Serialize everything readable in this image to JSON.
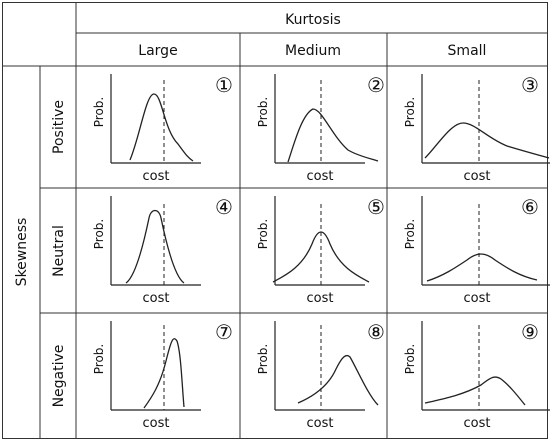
{
  "header": {
    "column_group_label": "Kurtosis",
    "columns": [
      "Large",
      "Medium",
      "Small"
    ],
    "row_group_label": "Skewness",
    "rows": [
      "Positive",
      "Neutral",
      "Negative"
    ]
  },
  "cells": [
    {
      "number": "①",
      "x_label": "cost",
      "y_label": "Prob.",
      "skewness": "positive",
      "kurtosis": "large"
    },
    {
      "number": "②",
      "x_label": "cost",
      "y_label": "Prob.",
      "skewness": "positive",
      "kurtosis": "medium"
    },
    {
      "number": "③",
      "x_label": "cost",
      "y_label": "Prob.",
      "skewness": "positive",
      "kurtosis": "small"
    },
    {
      "number": "④",
      "x_label": "cost",
      "y_label": "Prob.",
      "skewness": "neutral",
      "kurtosis": "large"
    },
    {
      "number": "⑤",
      "x_label": "cost",
      "y_label": "Prob.",
      "skewness": "neutral",
      "kurtosis": "medium"
    },
    {
      "number": "⑥",
      "x_label": "cost",
      "y_label": "Prob.",
      "skewness": "neutral",
      "kurtosis": "small"
    },
    {
      "number": "⑦",
      "x_label": "cost",
      "y_label": "Prob.",
      "skewness": "negative",
      "kurtosis": "large"
    },
    {
      "number": "⑧",
      "x_label": "cost",
      "y_label": "Prob.",
      "skewness": "negative",
      "kurtosis": "medium"
    },
    {
      "number": "⑨",
      "x_label": "cost",
      "y_label": "Prob.",
      "skewness": "negative",
      "kurtosis": "small"
    }
  ],
  "colors": {
    "line": "#222222",
    "grid": "#333333",
    "text": "#111111"
  }
}
